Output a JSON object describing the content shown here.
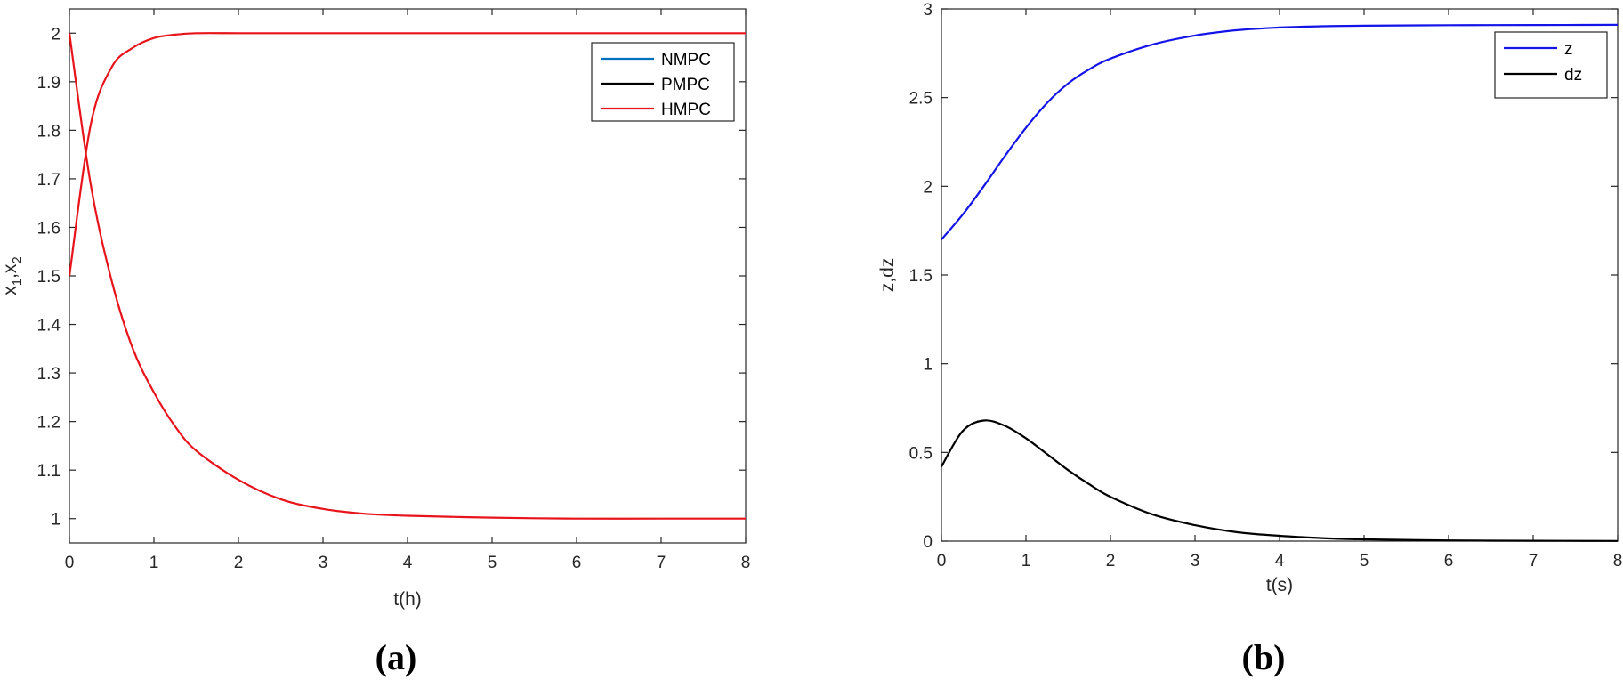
{
  "panels": [
    {
      "caption": "(a)",
      "ylabel_main": "x",
      "ylabel_parts": [
        {
          "t": "x",
          "sub": false
        },
        {
          "t": "1",
          "sub": true
        },
        {
          "t": ",x",
          "sub": false
        },
        {
          "t": "2",
          "sub": true
        }
      ],
      "legend": [
        {
          "label": "NMPC",
          "color": "#0072BD"
        },
        {
          "label": "PMPC",
          "color": "#000000"
        },
        {
          "label": "HMPC",
          "color": "#E8141B"
        }
      ]
    },
    {
      "caption": "(b)",
      "legend": [
        {
          "label": "z",
          "color": "#1414E8"
        },
        {
          "label": "dz",
          "color": "#000000"
        }
      ]
    }
  ],
  "chart_data": [
    {
      "type": "line",
      "title": "",
      "xlabel": "t(h)",
      "ylabel": "x1,x2",
      "xlim": [
        0,
        8
      ],
      "ylim": [
        0.95,
        2.05
      ],
      "xticks": [
        "0",
        "1",
        "2",
        "3",
        "4",
        "5",
        "6",
        "7",
        "8"
      ],
      "yticks": [
        "1",
        "1.1",
        "1.2",
        "1.3",
        "1.4",
        "1.5",
        "1.6",
        "1.7",
        "1.8",
        "1.9",
        "2"
      ],
      "grid": false,
      "legend_position": "top-right",
      "x": [
        0,
        0.25,
        0.5,
        0.75,
        1,
        1.25,
        1.5,
        2,
        2.5,
        3,
        3.5,
        4,
        5,
        6,
        7,
        8
      ],
      "series": [
        {
          "name": "HMPC",
          "color": "#E8141B",
          "values": [
            2.0,
            1.69,
            1.49,
            1.35,
            1.26,
            1.19,
            1.14,
            1.08,
            1.04,
            1.02,
            1.01,
            1.006,
            1.002,
            1.0,
            1.0,
            1.0
          ]
        },
        {
          "name": "HMPC",
          "color": "#E8141B",
          "values": [
            1.5,
            1.81,
            1.93,
            1.97,
            1.99,
            1.997,
            2.0,
            2.0,
            2.0,
            2.0,
            2.0,
            2.0,
            2.0,
            2.0,
            2.0,
            2.0
          ]
        }
      ]
    },
    {
      "type": "line",
      "title": "",
      "xlabel": "t(s)",
      "ylabel": "z,dz",
      "xlim": [
        0,
        8
      ],
      "ylim": [
        0,
        3
      ],
      "xticks": [
        "0",
        "1",
        "2",
        "3",
        "4",
        "5",
        "6",
        "7",
        "8"
      ],
      "yticks": [
        "0",
        "0.5",
        "1",
        "1.5",
        "2",
        "2.5",
        "3"
      ],
      "grid": false,
      "legend_position": "top-right",
      "x": [
        0,
        0.25,
        0.5,
        0.75,
        1,
        1.25,
        1.5,
        1.75,
        2,
        2.5,
        3,
        3.5,
        4,
        4.5,
        5,
        6,
        7,
        8
      ],
      "series": [
        {
          "name": "z",
          "color": "#1414E8",
          "values": [
            1.7,
            1.84,
            2.0,
            2.17,
            2.33,
            2.47,
            2.58,
            2.66,
            2.72,
            2.8,
            2.85,
            2.88,
            2.895,
            2.902,
            2.905,
            2.908,
            2.909,
            2.91
          ]
        },
        {
          "name": "dz",
          "color": "#000000",
          "values": [
            0.42,
            0.62,
            0.68,
            0.65,
            0.58,
            0.49,
            0.4,
            0.32,
            0.25,
            0.15,
            0.09,
            0.05,
            0.03,
            0.017,
            0.01,
            0.004,
            0.002,
            0.001
          ]
        }
      ]
    }
  ]
}
